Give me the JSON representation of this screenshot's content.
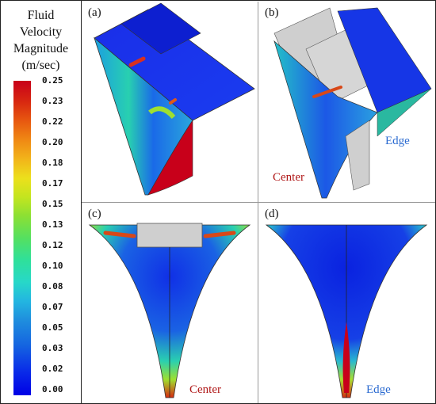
{
  "legend": {
    "title_lines": [
      "Fluid",
      "Velocity",
      "Magnitude",
      "(m/sec)"
    ],
    "ticks": [
      "0.25",
      "0.23",
      "0.22",
      "0.20",
      "0.18",
      "0.17",
      "0.15",
      "0.13",
      "0.12",
      "0.10",
      "0.08",
      "0.07",
      "0.05",
      "0.03",
      "0.02",
      "0.00"
    ],
    "scale_min": 0.0,
    "scale_max": 0.25
  },
  "panels": {
    "a": {
      "label": "(a)"
    },
    "b": {
      "label": "(b)",
      "edge_label": "Edge",
      "center_label": "Center"
    },
    "c": {
      "label": "(c)",
      "center_label": "Center"
    },
    "d": {
      "label": "(d)",
      "edge_label": "Edge"
    }
  },
  "colors": {
    "low": "#0000e6",
    "high": "#c8001a",
    "center_text": "#b01818",
    "edge_text": "#2a6ad0",
    "grey_surface": "#cfcfcf"
  }
}
